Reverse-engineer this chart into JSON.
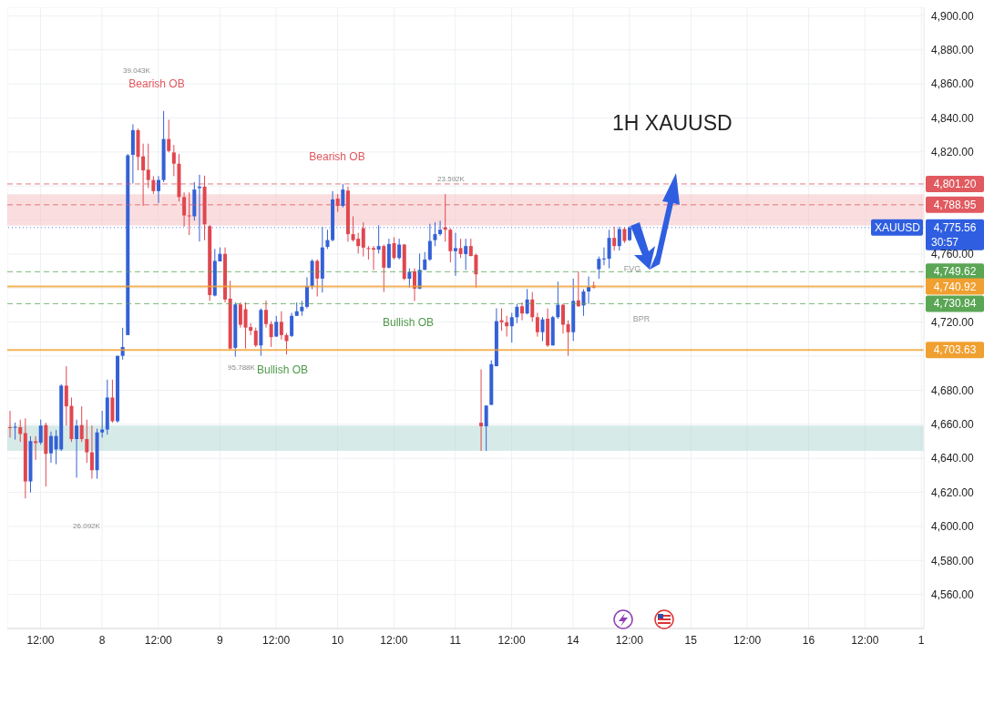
{
  "chart_data": {
    "type": "candlestick",
    "title": "1H XAUUSD",
    "categories": [
      null,
      null,
      null,
      null,
      null,
      null,
      "12:00",
      null,
      null,
      null,
      null,
      null,
      null,
      null,
      null,
      null,
      null,
      null,
      "8",
      null,
      null,
      null,
      null,
      null,
      null,
      null,
      null,
      null,
      null,
      "12:00",
      null,
      null,
      null,
      null,
      null,
      null,
      null,
      null,
      null,
      null,
      null,
      "9",
      null,
      null,
      null,
      null,
      null,
      null,
      null,
      null,
      null,
      null,
      "12:00",
      null,
      null,
      null,
      null,
      null,
      null,
      null,
      null,
      null,
      null,
      null,
      "10",
      null,
      null,
      null,
      null,
      null,
      null,
      null,
      null,
      null,
      null,
      "12:00",
      null,
      null,
      null,
      null,
      null,
      null,
      null,
      null,
      null,
      null,
      null,
      "11",
      null,
      null,
      null,
      null,
      null,
      null,
      null,
      null,
      null,
      null,
      "12:00",
      null,
      null,
      null,
      null,
      null,
      null,
      null,
      null,
      null,
      null,
      null,
      "14",
      null,
      null,
      null,
      null,
      null,
      null,
      null,
      null,
      null,
      null,
      "12:00",
      null,
      null,
      null,
      null,
      null,
      null,
      null,
      null,
      null,
      null,
      null,
      "15",
      null,
      null,
      null,
      null,
      null,
      null,
      null,
      null,
      null,
      null,
      "12:00",
      null,
      null,
      null,
      null,
      null,
      null,
      null,
      null,
      null,
      null,
      null,
      "16",
      null,
      null,
      null,
      null,
      null,
      null,
      null,
      null,
      null,
      null,
      "12:00",
      null,
      null,
      null,
      null,
      null,
      null,
      null,
      null,
      null,
      null,
      "1"
    ],
    "ohlc": [
      [
        4658.3,
        4667.9,
        4652.2,
        4658.0
      ],
      [
        4658.0,
        4661.0,
        4651.0,
        4658.5
      ],
      [
        4658.3,
        4662.7,
        4649.6,
        4654.3
      ],
      [
        4654.8,
        4663.5,
        4616.4,
        4626.4
      ],
      [
        4626.4,
        4653.0,
        4619.9,
        4650.1
      ],
      [
        4650.0,
        4653.0,
        4639.1,
        4649.0
      ],
      [
        4649.2,
        4662.7,
        4648.0,
        4659.2
      ],
      [
        4659.5,
        4660.9,
        4623.4,
        4642.6
      ],
      [
        4642.9,
        4655.7,
        4637.4,
        4653.1
      ],
      [
        4645.2,
        4656.6,
        4636.5,
        4653.1
      ],
      [
        4645.2,
        4683.6,
        4644.3,
        4682.7
      ],
      [
        4682.7,
        4694.1,
        4659.2,
        4670.5
      ],
      [
        4670.8,
        4675.7,
        4649.6,
        4651.3
      ],
      [
        4651.3,
        4662.7,
        4628.6,
        4659.2
      ],
      [
        4659.5,
        4670.5,
        4649.6,
        4651.3
      ],
      [
        4651.3,
        4662.7,
        4637.4,
        4643.5
      ],
      [
        4643.5,
        4659.2,
        4628.0,
        4633.0
      ],
      [
        4633.0,
        4657.4,
        4628.0,
        4655.2
      ],
      [
        4655.2,
        4667.9,
        4652.2,
        4656.9
      ],
      [
        4656.9,
        4686.2,
        4653.9,
        4675.7
      ],
      [
        4675.7,
        4686.2,
        4660.9,
        4661.8
      ],
      [
        4661.8,
        4700.2,
        4660.9,
        4700.2
      ],
      [
        4700.2,
        4716.7,
        4698.0,
        4705.4
      ],
      [
        4712.4,
        4818.9,
        4712.4,
        4818.0
      ],
      [
        4818.3,
        4836.3,
        4801.4,
        4832.8
      ],
      [
        4832.8,
        4833.7,
        4809.2,
        4817.1
      ],
      [
        4817.4,
        4824.9,
        4788.3,
        4809.2
      ],
      [
        4809.6,
        4824.9,
        4798.8,
        4803.5
      ],
      [
        4803.5,
        4805.8,
        4795.3,
        4797.0
      ],
      [
        4797.0,
        4805.8,
        4790.0,
        4803.5
      ],
      [
        4803.5,
        4844.1,
        4802.3,
        4827.6
      ],
      [
        4827.6,
        4838.9,
        4819.7,
        4820.6
      ],
      [
        4819.7,
        4824.1,
        4805.8,
        4813.1
      ],
      [
        4813.1,
        4818.8,
        4790.9,
        4793.5
      ],
      [
        4793.5,
        4796.2,
        4776.1,
        4782.7
      ],
      [
        4782.7,
        4796.2,
        4771.2,
        4782.3
      ],
      [
        4782.2,
        4802.3,
        4779.6,
        4797.9
      ],
      [
        4798.8,
        4806.6,
        4767.4,
        4799.6
      ],
      [
        4799.6,
        4806.1,
        4768.2,
        4777.5
      ],
      [
        4776.4,
        4777.0,
        4732.5,
        4735.9
      ],
      [
        4735.6,
        4763.0,
        4735.1,
        4756.0
      ],
      [
        4755.7,
        4763.9,
        4755.7,
        4760.1
      ],
      [
        4760.1,
        4763.9,
        4731.6,
        4733.3
      ],
      [
        4733.8,
        4744.3,
        4703.7,
        4704.5
      ],
      [
        4704.9,
        4731.6,
        4699.7,
        4730.4
      ],
      [
        4730.4,
        4731.6,
        4716.8,
        4718.5
      ],
      [
        4727.6,
        4731.6,
        4704.5,
        4716.8
      ],
      [
        4717.1,
        4719.4,
        4712.4,
        4715.0
      ],
      [
        4715.0,
        4716.8,
        4705.4,
        4706.3
      ],
      [
        4706.3,
        4728.1,
        4700.2,
        4727.2
      ],
      [
        4727.2,
        4732.8,
        4716.8,
        4718.9
      ],
      [
        4718.9,
        4720.6,
        4705.4,
        4711.2
      ],
      [
        4711.5,
        4723.7,
        4711.5,
        4720.2
      ],
      [
        4720.2,
        4726.4,
        4709.8,
        4712.4
      ],
      [
        4712.4,
        4713.6,
        4701.0,
        4708.9
      ],
      [
        4711.9,
        4725.5,
        4711.2,
        4723.7
      ],
      [
        4723.7,
        4731.6,
        4723.7,
        4726.4
      ],
      [
        4726.4,
        4732.5,
        4723.7,
        4729.0
      ],
      [
        4729.0,
        4746.4,
        4728.1,
        4741.2
      ],
      [
        4741.2,
        4756.9,
        4739.4,
        4756.0
      ],
      [
        4756.0,
        4756.9,
        4735.1,
        4745.6
      ],
      [
        4745.6,
        4776.1,
        4737.4,
        4763.9
      ],
      [
        4764.2,
        4774.3,
        4763.0,
        4768.2
      ],
      [
        4768.2,
        4797.0,
        4767.4,
        4792.1
      ],
      [
        4792.6,
        4795.2,
        4784.8,
        4788.3
      ],
      [
        4788.3,
        4801.3,
        4787.4,
        4797.9
      ],
      [
        4797.3,
        4799.6,
        4767.3,
        4771.7
      ],
      [
        4771.7,
        4782.2,
        4767.3,
        4768.2
      ],
      [
        4769.0,
        4772.5,
        4760.3,
        4764.7
      ],
      [
        4775.2,
        4778.7,
        4758.6,
        4763.8
      ],
      [
        4763.5,
        4764.7,
        4756.8,
        4763.3
      ],
      [
        4763.5,
        4764.7,
        4750.7,
        4762.6
      ],
      [
        4762.6,
        4776.9,
        4760.3,
        4764.7
      ],
      [
        4764.7,
        4765.6,
        4737.7,
        4752.0
      ],
      [
        4752.0,
        4769.0,
        4751.6,
        4765.9
      ],
      [
        4766.4,
        4769.9,
        4756.8,
        4757.7
      ],
      [
        4757.7,
        4769.0,
        4756.8,
        4765.6
      ],
      [
        4765.6,
        4765.9,
        4744.6,
        4745.5
      ],
      [
        4745.5,
        4751.6,
        4740.3,
        4749.5
      ],
      [
        4749.9,
        4751.6,
        4732.4,
        4739.7
      ],
      [
        4739.7,
        4760.3,
        4739.4,
        4750.7
      ],
      [
        4750.7,
        4761.2,
        4750.7,
        4756.8
      ],
      [
        4756.8,
        4777.8,
        4756.0,
        4767.7
      ],
      [
        4768.2,
        4778.7,
        4764.7,
        4771.7
      ],
      [
        4771.7,
        4779.5,
        4770.8,
        4774.3
      ],
      [
        4775.7,
        4795.2,
        4767.3,
        4774.3
      ],
      [
        4774.3,
        4775.2,
        4755.1,
        4761.7
      ],
      [
        4761.7,
        4772.5,
        4747.2,
        4763.5
      ],
      [
        4763.5,
        4769.0,
        4757.7,
        4760.0
      ],
      [
        4760.0,
        4769.0,
        4750.7,
        4764.7
      ],
      [
        4764.7,
        4769.0,
        4758.6,
        4758.9
      ],
      [
        4759.5,
        4760.3,
        4740.3,
        4748.1
      ],
      [
        4660.9,
        4692.3,
        4644.3,
        4658.8
      ],
      [
        4658.8,
        4671.0,
        4644.3,
        4671.0
      ],
      [
        4671.4,
        4697.6,
        4671.4,
        4695.3
      ],
      [
        4694.1,
        4728.1,
        4694.1,
        4720.6
      ],
      [
        4721.1,
        4728.1,
        4715.0,
        4719.9
      ],
      [
        4719.9,
        4723.7,
        4711.5,
        4717.6
      ],
      [
        4717.6,
        4725.5,
        4708.0,
        4722.9
      ],
      [
        4722.9,
        4730.7,
        4719.4,
        4729.0
      ],
      [
        4729.3,
        4731.6,
        4721.1,
        4725.1
      ],
      [
        4725.1,
        4739.4,
        4724.6,
        4733.3
      ],
      [
        4733.3,
        4737.7,
        4720.2,
        4722.9
      ],
      [
        4722.9,
        4725.5,
        4711.5,
        4714.1
      ],
      [
        4714.1,
        4722.9,
        4708.9,
        4721.6
      ],
      [
        4722.0,
        4728.1,
        4705.4,
        4706.3
      ],
      [
        4706.3,
        4723.7,
        4706.3,
        4722.9
      ],
      [
        4722.9,
        4743.8,
        4722.0,
        4730.2
      ],
      [
        4730.2,
        4730.7,
        4713.3,
        4718.5
      ],
      [
        4718.8,
        4721.1,
        4700.2,
        4714.1
      ],
      [
        4714.1,
        4745.5,
        4708.9,
        4732.5
      ],
      [
        4732.8,
        4749.9,
        4729.0,
        4729.3
      ],
      [
        4729.8,
        4739.4,
        4723.7,
        4738.0
      ],
      [
        4738.0,
        4746.8,
        4730.7,
        4740.8
      ],
      [
        4741.5,
        4743.8,
        4739.8,
        4740.3
      ],
      [
        4751.1,
        4758.6,
        4745.5,
        4757.2
      ],
      [
        4757.2,
        4763.9,
        4753.4,
        4757.4
      ],
      [
        4757.2,
        4774.3,
        4751.6,
        4769.5
      ],
      [
        4769.5,
        4776.1,
        4762.1,
        4764.7
      ],
      [
        4764.7,
        4776.1,
        4762.1,
        4774.7
      ],
      [
        4774.7,
        4775.7,
        4766.5,
        4767.7
      ],
      [
        4768.2,
        4776.5,
        4767.7,
        4775.6
      ],
      null,
      null,
      null,
      null,
      null,
      null,
      null,
      null,
      null,
      null,
      null,
      null,
      null,
      null,
      null,
      null,
      null,
      null,
      null,
      null,
      null,
      null,
      null,
      null,
      null,
      null,
      null,
      null,
      null,
      null,
      null,
      null,
      null,
      null,
      null,
      null,
      null,
      null,
      null,
      null,
      null,
      null,
      null,
      null,
      null,
      null,
      null,
      null,
      null,
      null,
      null,
      null,
      null,
      null,
      null,
      null,
      null
    ],
    "colors": [
      "#e0474f",
      "#3461d6",
      "#e0474f",
      "#e0474f",
      "#3461d6",
      "#e0474f",
      "#3461d6",
      "#e0474f",
      "#3461d6",
      "#3461d6",
      "#3461d6",
      "#e0474f",
      "#e0474f",
      "#3461d6",
      "#e0474f",
      "#e0474f",
      "#e0474f",
      "#3461d6",
      "#3461d6",
      "#3461d6",
      "#e0474f",
      "#3461d6",
      "#3461d6",
      "#3461d6",
      "#3461d6",
      "#e0474f",
      "#e0474f",
      "#e0474f",
      "#e0474f",
      "#3461d6",
      "#3461d6",
      "#e0474f",
      "#e0474f",
      "#e0474f",
      "#e0474f",
      "#e0474f",
      "#3461d6",
      "#3461d6",
      "#e0474f",
      "#e0474f",
      "#3461d6",
      "#3461d6",
      "#e0474f",
      "#e0474f",
      "#3461d6",
      "#e0474f",
      "#e0474f",
      "#e0474f",
      "#e0474f",
      "#3461d6",
      "#e0474f",
      "#e0474f",
      "#3461d6",
      "#e0474f",
      "#e0474f",
      "#3461d6",
      "#3461d6",
      "#3461d6",
      "#3461d6",
      "#3461d6",
      "#e0474f",
      "#3461d6",
      "#3461d6",
      "#3461d6",
      "#e0474f",
      "#3461d6",
      "#e0474f",
      "#e0474f",
      "#e0474f",
      "#e0474f",
      "#e0474f",
      "#e0474f",
      "#3461d6",
      "#e0474f",
      "#3461d6",
      "#e0474f",
      "#3461d6",
      "#e0474f",
      "#3461d6",
      "#e0474f",
      "#3461d6",
      "#3461d6",
      "#3461d6",
      "#3461d6",
      "#3461d6",
      "#e0474f",
      "#e0474f",
      "#3461d6",
      "#e0474f",
      "#3461d6",
      "#e0474f",
      "#e0474f",
      "#e0474f",
      "#3461d6",
      "#3461d6",
      "#3461d6",
      "#e0474f",
      "#e0474f",
      "#3461d6",
      "#3461d6",
      "#e0474f",
      "#3461d6",
      "#e0474f",
      "#e0474f",
      "#3461d6",
      "#e0474f",
      "#3461d6",
      "#3461d6",
      "#e0474f",
      "#e0474f",
      "#3461d6",
      "#e0474f",
      "#3461d6",
      "#3461d6",
      "#e0474f",
      "#3461d6",
      "#3461d6",
      "#3461d6",
      "#e0474f",
      "#3461d6",
      "#e0474f",
      "#3461d6",
      null,
      null,
      null,
      null,
      null,
      null,
      null,
      null,
      null,
      null,
      null,
      null,
      null,
      null,
      null,
      null,
      null,
      null,
      null,
      null,
      null,
      null,
      null,
      null,
      null,
      null,
      null,
      null,
      null,
      null,
      null,
      null,
      null,
      null,
      null,
      null,
      null,
      null,
      null,
      null,
      null,
      null,
      null,
      null,
      null,
      null,
      null,
      null,
      null,
      null,
      null,
      null,
      null,
      null,
      null,
      null,
      null
    ],
    "ylim": [
      4540,
      4905
    ],
    "yticks": [
      {
        "value": 4560,
        "label": "4,560.00"
      },
      {
        "value": 4580,
        "label": "4,580.00"
      },
      {
        "value": 4600,
        "label": "4,600.00"
      },
      {
        "value": 4620,
        "label": "4,620.00"
      },
      {
        "value": 4640,
        "label": "4,640.00"
      },
      {
        "value": 4660,
        "label": "4,660.00"
      },
      {
        "value": 4680,
        "label": "4,680.00"
      },
      {
        "value": 4700,
        "label": null
      },
      {
        "value": 4720,
        "label": "4,720.00"
      },
      {
        "value": 4740,
        "label": null
      },
      {
        "value": 4760,
        "label": "4,760.00"
      },
      {
        "value": 4780,
        "label": null
      },
      {
        "value": 4800,
        "label": null
      },
      {
        "value": 4820,
        "label": "4,820.00"
      },
      {
        "value": 4840,
        "label": "4,840.00"
      },
      {
        "value": 4860,
        "label": "4,860.00"
      },
      {
        "value": 4880,
        "label": "4,880.00"
      },
      {
        "value": 4900,
        "label": "4,900.00"
      }
    ],
    "grid": true,
    "bands": [
      {
        "axis": "y",
        "from": 4776.8,
        "to": 4795.1,
        "color": "#f6c3c5"
      },
      {
        "axis": "y",
        "from": 4644.3,
        "to": 4659.2,
        "color": "#b5dbd6"
      }
    ],
    "ref_lines": [
      {
        "axis": "y",
        "value": 4801.2,
        "label": "4,801.20",
        "color": "#e05a5f",
        "line_style": "dashed"
      },
      {
        "axis": "y",
        "value": 4788.95,
        "label": "4,788.95",
        "color": "#e05a5f",
        "line_style": "dashed"
      },
      {
        "axis": "y",
        "value": 4775.56,
        "label": "4,775.56",
        "color": "#2f5fe0",
        "line_style": "dotted"
      },
      {
        "axis": "y",
        "value": 4749.62,
        "label": "4,749.62",
        "color": "#5aa655",
        "line_style": "dashed"
      },
      {
        "axis": "y",
        "value": 4740.92,
        "label": "4,740.92",
        "color": "#f0a030",
        "line_style": "solid"
      },
      {
        "axis": "y",
        "value": 4730.84,
        "label": "4,730.84",
        "color": "#5aa655",
        "line_style": "dashed"
      },
      {
        "axis": "y",
        "value": 4703.63,
        "label": "4,703.63",
        "color": "#f0a030",
        "line_style": "solid"
      }
    ],
    "annotations": [
      "39.043K",
      "Bearish OB",
      "Bearish OB",
      "23.592K",
      "Bullish OB",
      "95.788K",
      "Bullish OB",
      "26.092K",
      "FVG",
      "BPR",
      "XAUUSD",
      "30:57"
    ]
  }
}
